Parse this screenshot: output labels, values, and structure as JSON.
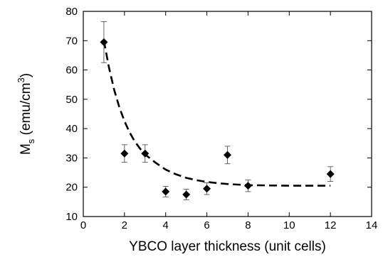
{
  "chart_data": {
    "type": "scatter",
    "title": "",
    "xlabel": "YBCO layer thickness (unit cells)",
    "ylabel": {
      "main": "M",
      "sub": "s",
      "units_open": " (emu/cm",
      "units_sup": "3",
      "units_close": ")"
    },
    "xlim": [
      0,
      14
    ],
    "ylim": [
      10,
      80
    ],
    "xticks": [
      0,
      2,
      4,
      6,
      8,
      10,
      12,
      14
    ],
    "yticks": [
      10,
      20,
      30,
      40,
      50,
      60,
      70,
      80
    ],
    "grid": false,
    "legend": "none",
    "series": [
      {
        "marker": "diamond",
        "color": "#000000",
        "points": [
          {
            "x": 1,
            "y": 69.5,
            "err": 7.0
          },
          {
            "x": 2,
            "y": 31.5,
            "err": 3.0
          },
          {
            "x": 3,
            "y": 31.5,
            "err": 3.0
          },
          {
            "x": 4,
            "y": 18.5,
            "err": 1.8
          },
          {
            "x": 5,
            "y": 17.5,
            "err": 1.8
          },
          {
            "x": 6,
            "y": 19.5,
            "err": 2.0
          },
          {
            "x": 7,
            "y": 31.0,
            "err": 3.0
          },
          {
            "x": 8,
            "y": 20.5,
            "err": 2.0
          },
          {
            "x": 12,
            "y": 24.5,
            "err": 2.5
          }
        ]
      }
    ],
    "fit_curve": {
      "style": "dashed",
      "color": "#000000",
      "x": [
        1,
        1.25,
        1.5,
        1.75,
        2,
        2.25,
        2.5,
        2.75,
        3,
        3.5,
        4,
        4.5,
        5,
        5.5,
        6,
        6.5,
        7,
        7.5,
        8,
        9,
        10,
        11,
        12
      ],
      "y": [
        70,
        60.7,
        53.2,
        47.3,
        42.5,
        38.7,
        35.6,
        33.2,
        31.2,
        28.4,
        26.0,
        24.4,
        23.2,
        22.4,
        21.8,
        21.4,
        21.1,
        20.9,
        20.7,
        20.6,
        20.5,
        20.5,
        20.5
      ]
    }
  }
}
